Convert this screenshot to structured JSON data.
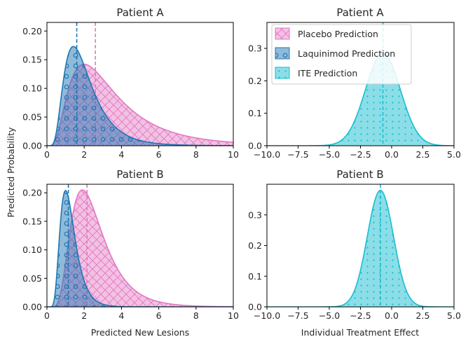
{
  "colors": {
    "placebo": "#e377c2",
    "laquinimod": "#1f77b4",
    "ite": "#17becf"
  },
  "legend": {
    "placebo": "Placebo Prediction",
    "laquinimod": "Laquinimod Prediction",
    "ite": "ITE Prediction"
  },
  "chart_data": [
    {
      "id": "lesions-a",
      "type": "area",
      "title": "Patient A",
      "xlabel": "",
      "ylabel": "",
      "xlim": [
        0,
        10
      ],
      "ylim": [
        0,
        0.215
      ],
      "xticks": [
        0,
        2,
        4,
        6,
        8,
        10
      ],
      "yticks": [
        0.0,
        0.05,
        0.1,
        0.15,
        0.2
      ],
      "series": [
        {
          "name": "Placebo Prediction",
          "distribution": "lognormal",
          "mode": 2.0,
          "peak": 0.142,
          "sigma": 0.64,
          "mean_line": 2.6
        },
        {
          "name": "Laquinimod Prediction",
          "distribution": "lognormal",
          "mode": 1.42,
          "peak": 0.173,
          "sigma": 0.52,
          "mean_line": 1.6
        }
      ]
    },
    {
      "id": "ite-a",
      "type": "area",
      "title": "Patient A",
      "xlabel": "",
      "ylabel": "",
      "xlim": [
        -10,
        5
      ],
      "ylim": [
        0,
        0.38
      ],
      "xticks": [
        -10.0,
        -7.5,
        -5.0,
        -2.5,
        0.0,
        2.5,
        5.0
      ],
      "yticks": [
        0.0,
        0.1,
        0.2,
        0.3
      ],
      "series": [
        {
          "name": "ITE Prediction",
          "distribution": "normal",
          "mean": -0.7,
          "sd": 1.4,
          "peak": 0.285,
          "mean_line": -0.7
        }
      ]
    },
    {
      "id": "lesions-b",
      "type": "area",
      "title": "Patient B",
      "xlabel": "Predicted New Lesions",
      "ylabel": "",
      "xlim": [
        0,
        10
      ],
      "ylim": [
        0,
        0.215
      ],
      "xticks": [
        0,
        2,
        4,
        6,
        8,
        10
      ],
      "yticks": [
        0.0,
        0.05,
        0.1,
        0.15,
        0.2
      ],
      "series": [
        {
          "name": "Placebo Prediction",
          "distribution": "lognormal",
          "mode": 1.9,
          "peak": 0.205,
          "sigma": 0.46,
          "mean_line": 2.15
        },
        {
          "name": "Laquinimod Prediction",
          "distribution": "lognormal",
          "mode": 1.0,
          "peak": 0.204,
          "sigma": 0.4,
          "mean_line": 1.15
        }
      ]
    },
    {
      "id": "ite-b",
      "type": "area",
      "title": "Patient B",
      "xlabel": "Individual Treatment Effect",
      "ylabel": "",
      "xlim": [
        -10,
        5
      ],
      "ylim": [
        0,
        0.4
      ],
      "xticks": [
        -10.0,
        -7.5,
        -5.0,
        -2.5,
        0.0,
        2.5,
        5.0
      ],
      "yticks": [
        0.0,
        0.1,
        0.2,
        0.3
      ],
      "series": [
        {
          "name": "ITE Prediction",
          "distribution": "normal",
          "mean": -0.9,
          "sd": 1.05,
          "peak": 0.38,
          "mean_line": -0.9
        }
      ]
    }
  ],
  "shared_ylabel": "Predicted Probability"
}
